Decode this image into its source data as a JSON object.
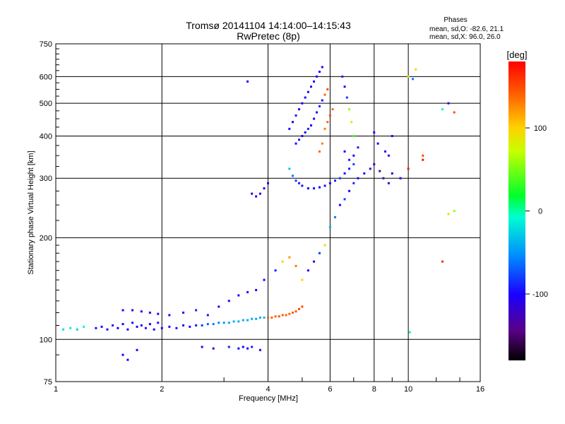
{
  "header": {
    "title_line1": "Tromsø 20141104 14:14:00–14:15:43",
    "title_line2": "RwPretec (8p)"
  },
  "phase_stats": {
    "label": "Phases",
    "line_o": "mean, sd,O: -82.6, 21.1",
    "line_x": "mean, sd,X:  96.0, 26.0"
  },
  "colorbar": {
    "label": "[deg]",
    "min": -180,
    "max": 180,
    "tick_values": [
      100,
      0,
      -100
    ],
    "tick_labels": [
      "100",
      "0",
      "-100"
    ],
    "colormap": "rainbow (black-violet-blue-cyan-green-yellow-orange-red)"
  },
  "chart_data": {
    "type": "scatter",
    "title": "Tromsø 20141104 14:14:00–14:15:43",
    "subtitle": "RwPretec (8p)",
    "xlabel": "Frequency [MHz]",
    "ylabel": "Stationary phase Virtual Height [km]",
    "x_scale": "log",
    "y_scale": "log",
    "xlim": [
      1,
      16
    ],
    "ylim": [
      75,
      750
    ],
    "x_ticks": [
      1,
      2,
      4,
      6,
      8,
      10,
      16
    ],
    "x_tick_labels": [
      "1",
      "2",
      "4",
      "6",
      "8",
      "10",
      "16"
    ],
    "y_ticks": [
      75,
      100,
      200,
      300,
      400,
      500,
      600,
      750
    ],
    "y_tick_labels": [
      "75",
      "100",
      "200",
      "300",
      "400",
      "500",
      "600",
      "750"
    ],
    "grid": true,
    "color_dimension": "Phase [deg]",
    "points": [
      [
        1.05,
        107,
        -20
      ],
      [
        1.1,
        108,
        -15
      ],
      [
        1.15,
        107,
        -25
      ],
      [
        1.2,
        109,
        -10
      ],
      [
        1.3,
        108,
        -95
      ],
      [
        1.35,
        109,
        -100
      ],
      [
        1.4,
        107,
        -100
      ],
      [
        1.45,
        110,
        -95
      ],
      [
        1.5,
        108,
        -105
      ],
      [
        1.55,
        111,
        -100
      ],
      [
        1.6,
        107,
        -100
      ],
      [
        1.65,
        112,
        -95
      ],
      [
        1.7,
        109,
        -100
      ],
      [
        1.75,
        110,
        -105
      ],
      [
        1.8,
        108,
        -95
      ],
      [
        1.85,
        111,
        -100
      ],
      [
        1.9,
        107,
        -100
      ],
      [
        1.95,
        112,
        -95
      ],
      [
        2.0,
        108,
        -100
      ],
      [
        2.1,
        109,
        -100
      ],
      [
        2.2,
        108,
        -95
      ],
      [
        2.3,
        110,
        -100
      ],
      [
        2.4,
        109,
        -100
      ],
      [
        2.5,
        110,
        -90
      ],
      [
        2.6,
        110,
        -80
      ],
      [
        2.7,
        111,
        -70
      ],
      [
        2.8,
        111,
        -60
      ],
      [
        2.9,
        112,
        -55
      ],
      [
        3.0,
        112,
        -50
      ],
      [
        3.1,
        112,
        -45
      ],
      [
        3.2,
        113,
        -40
      ],
      [
        3.3,
        113,
        -40
      ],
      [
        3.4,
        114,
        -40
      ],
      [
        3.5,
        114,
        -40
      ],
      [
        3.6,
        115,
        -40
      ],
      [
        3.7,
        115,
        -40
      ],
      [
        3.8,
        116,
        -40
      ],
      [
        3.9,
        116,
        -35
      ],
      [
        4.0,
        116,
        140
      ],
      [
        4.1,
        116,
        140
      ],
      [
        4.2,
        117,
        140
      ],
      [
        4.3,
        117,
        145
      ],
      [
        4.4,
        118,
        145
      ],
      [
        4.5,
        118,
        140
      ],
      [
        4.6,
        119,
        140
      ],
      [
        4.7,
        120,
        145
      ],
      [
        4.8,
        121,
        145
      ],
      [
        4.9,
        123,
        150
      ],
      [
        5.0,
        125,
        150
      ],
      [
        1.55,
        122,
        -100
      ],
      [
        1.65,
        122,
        -100
      ],
      [
        1.75,
        121,
        -100
      ],
      [
        1.85,
        120,
        -100
      ],
      [
        1.95,
        119,
        -100
      ],
      [
        2.1,
        118,
        -100
      ],
      [
        2.3,
        120,
        -100
      ],
      [
        2.5,
        122,
        -90
      ],
      [
        2.7,
        118,
        -95
      ],
      [
        2.9,
        125,
        -100
      ],
      [
        3.1,
        130,
        -100
      ],
      [
        3.3,
        135,
        -100
      ],
      [
        3.5,
        138,
        -95
      ],
      [
        3.7,
        140,
        -100
      ],
      [
        3.9,
        150,
        -100
      ],
      [
        4.2,
        160,
        -90
      ],
      [
        4.4,
        170,
        100
      ],
      [
        4.6,
        175,
        120
      ],
      [
        4.8,
        165,
        130
      ],
      [
        5.0,
        150,
        100
      ],
      [
        5.2,
        160,
        -100
      ],
      [
        5.4,
        170,
        -100
      ],
      [
        5.6,
        180,
        -80
      ],
      [
        5.8,
        190,
        90
      ],
      [
        6.0,
        215,
        -40
      ],
      [
        6.2,
        230,
        -60
      ],
      [
        6.4,
        250,
        -100
      ],
      [
        6.6,
        260,
        -80
      ],
      [
        6.8,
        275,
        -100
      ],
      [
        7.0,
        290,
        -90
      ],
      [
        7.2,
        300,
        -100
      ],
      [
        7.5,
        310,
        -95
      ],
      [
        7.8,
        320,
        -120
      ],
      [
        8.0,
        330,
        -130
      ],
      [
        8.3,
        315,
        -140
      ],
      [
        8.5,
        300,
        -130
      ],
      [
        8.8,
        290,
        -120
      ],
      [
        9.0,
        310,
        -110
      ],
      [
        9.5,
        300,
        -100
      ],
      [
        4.6,
        320,
        -30
      ],
      [
        4.7,
        305,
        -60
      ],
      [
        4.8,
        295,
        -80
      ],
      [
        4.9,
        290,
        -90
      ],
      [
        5.0,
        285,
        -95
      ],
      [
        5.2,
        280,
        -100
      ],
      [
        5.4,
        280,
        -100
      ],
      [
        5.6,
        282,
        -100
      ],
      [
        5.8,
        285,
        -95
      ],
      [
        6.0,
        290,
        -100
      ],
      [
        6.2,
        295,
        -90
      ],
      [
        6.4,
        300,
        -80
      ],
      [
        6.6,
        310,
        -100
      ],
      [
        6.8,
        320,
        -90
      ],
      [
        7.0,
        330,
        -80
      ],
      [
        4.6,
        420,
        -100
      ],
      [
        4.7,
        440,
        -100
      ],
      [
        4.8,
        460,
        -90
      ],
      [
        4.9,
        480,
        -100
      ],
      [
        5.0,
        500,
        -100
      ],
      [
        5.1,
        520,
        -100
      ],
      [
        5.2,
        540,
        -100
      ],
      [
        5.3,
        560,
        -100
      ],
      [
        5.4,
        580,
        -100
      ],
      [
        5.5,
        600,
        -100
      ],
      [
        5.6,
        620,
        -100
      ],
      [
        5.7,
        640,
        -100
      ],
      [
        4.8,
        380,
        -100
      ],
      [
        4.9,
        390,
        -90
      ],
      [
        5.0,
        400,
        -100
      ],
      [
        5.1,
        410,
        -100
      ],
      [
        5.2,
        420,
        -90
      ],
      [
        5.3,
        430,
        -100
      ],
      [
        5.4,
        450,
        -100
      ],
      [
        5.5,
        470,
        -100
      ],
      [
        5.6,
        490,
        -90
      ],
      [
        5.7,
        510,
        -100
      ],
      [
        5.8,
        530,
        140
      ],
      [
        5.9,
        550,
        150
      ],
      [
        5.8,
        420,
        130
      ],
      [
        5.9,
        440,
        140
      ],
      [
        6.0,
        460,
        150
      ],
      [
        6.1,
        480,
        140
      ],
      [
        5.6,
        360,
        140
      ],
      [
        5.7,
        380,
        130
      ],
      [
        6.5,
        600,
        -90
      ],
      [
        6.6,
        560,
        -100
      ],
      [
        6.7,
        520,
        -80
      ],
      [
        6.8,
        480,
        60
      ],
      [
        6.9,
        440,
        80
      ],
      [
        7.0,
        400,
        40
      ],
      [
        6.6,
        360,
        -100
      ],
      [
        6.8,
        340,
        -90
      ],
      [
        7.0,
        350,
        -100
      ],
      [
        7.2,
        370,
        -90
      ],
      [
        8.0,
        410,
        -100
      ],
      [
        8.2,
        380,
        -100
      ],
      [
        8.6,
        360,
        -100
      ],
      [
        8.8,
        350,
        -110
      ],
      [
        9.0,
        400,
        -120
      ],
      [
        10.0,
        600,
        90
      ],
      [
        10.3,
        590,
        -60
      ],
      [
        10.5,
        630,
        100
      ],
      [
        11.0,
        350,
        150
      ],
      [
        12.5,
        480,
        -10
      ],
      [
        13.0,
        500,
        -100
      ],
      [
        13.5,
        470,
        150
      ],
      [
        11.0,
        340,
        170
      ],
      [
        10.0,
        320,
        170
      ],
      [
        10.1,
        105,
        -10
      ],
      [
        12.5,
        170,
        160
      ],
      [
        13.0,
        235,
        90
      ],
      [
        13.5,
        240,
        60
      ],
      [
        3.5,
        580,
        -100
      ],
      [
        3.6,
        270,
        -100
      ],
      [
        3.7,
        265,
        -100
      ],
      [
        3.8,
        270,
        -100
      ],
      [
        3.9,
        280,
        -100
      ],
      [
        4.0,
        290,
        -100
      ],
      [
        2.6,
        95,
        -100
      ],
      [
        2.8,
        94,
        -100
      ],
      [
        3.1,
        95,
        -90
      ],
      [
        3.3,
        94,
        -100
      ],
      [
        3.4,
        95,
        -100
      ],
      [
        3.5,
        94,
        -100
      ],
      [
        3.6,
        95,
        -90
      ],
      [
        3.8,
        93,
        -110
      ],
      [
        1.55,
        90,
        -100
      ],
      [
        1.6,
        87,
        -100
      ],
      [
        1.7,
        93,
        -110
      ]
    ]
  }
}
